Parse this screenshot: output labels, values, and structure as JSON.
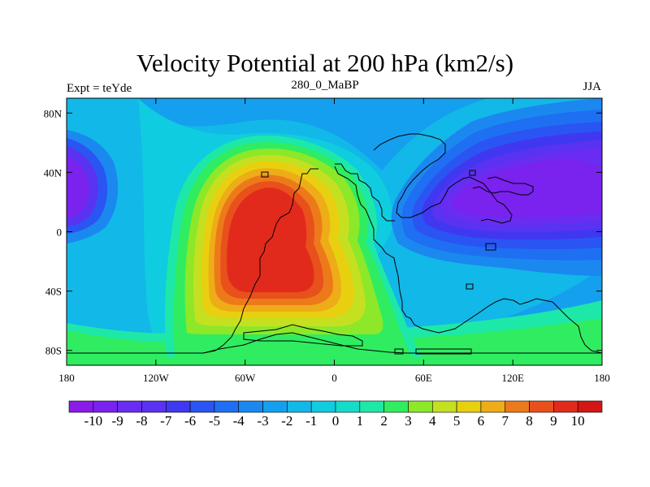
{
  "title": "Velocity Potential at 200 hPa (km2/s)",
  "left_label": "Expt = teYde",
  "center_label": "280_0_MaBP",
  "right_label": "JJA",
  "chart_data": {
    "type": "heatmap",
    "title": "Velocity Potential at 200 hPa (km2/s)",
    "subtitle": "280_0_MaBP",
    "field": "200 hPa velocity potential (km2/s)",
    "season": "JJA",
    "experiment": "teYde",
    "x_ticks": [
      "180",
      "120W",
      "60W",
      "0",
      "60E",
      "120E",
      "180"
    ],
    "y_ticks": [
      "80N",
      "40N",
      "0",
      "40S",
      "80S"
    ],
    "xlim": [
      -180,
      180
    ],
    "ylim": [
      -90,
      90
    ],
    "colorbar": {
      "levels": [
        "-10",
        "-9",
        "-8",
        "-7",
        "-6",
        "-5",
        "-4",
        "-3",
        "-2",
        "-1",
        "0",
        "1",
        "2",
        "3",
        "4",
        "5",
        "6",
        "7",
        "8",
        "9",
        "10"
      ],
      "colors": [
        "#8a1be8",
        "#7a22ee",
        "#6a2cf0",
        "#5a32f2",
        "#4038f0",
        "#2a55f2",
        "#1f6ff2",
        "#1b88f0",
        "#14a0ee",
        "#12b8e8",
        "#10cce0",
        "#14dcc8",
        "#1ee8a8",
        "#30ec60",
        "#8ce828",
        "#c4e020",
        "#e8d010",
        "#eeac18",
        "#ec7a1a",
        "#e8501c",
        "#e22a1c",
        "#d41616"
      ]
    },
    "anomalies": [
      {
        "name": "positive-max-atlantic-africa",
        "lon": -40,
        "lat": -10,
        "value": 10
      },
      {
        "name": "negative-min-asia-pacific",
        "lon": 100,
        "lat": 20,
        "value": -10
      },
      {
        "name": "negative-min-west-pacific",
        "lon": -175,
        "lat": 20,
        "value": -9
      }
    ]
  }
}
